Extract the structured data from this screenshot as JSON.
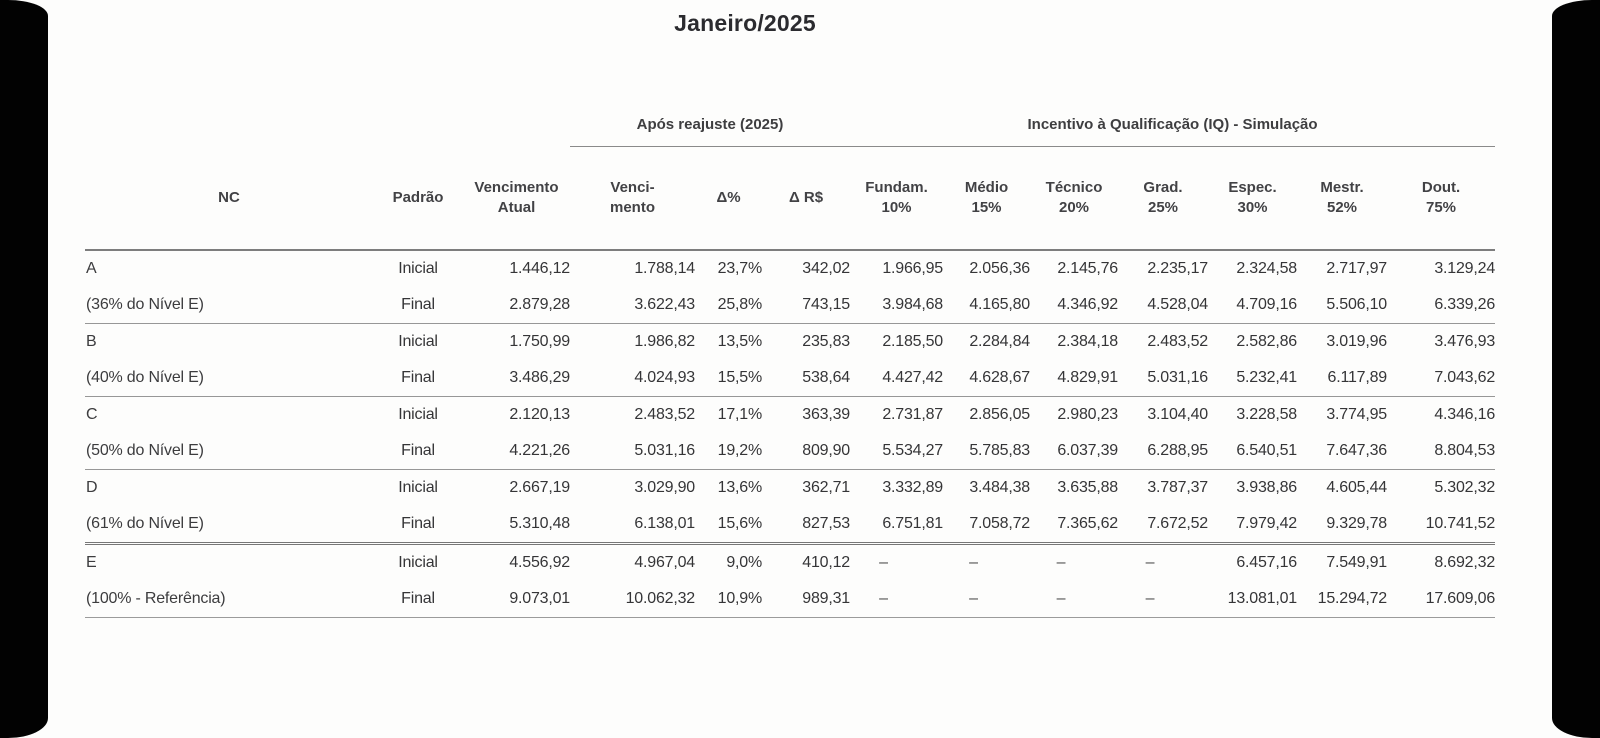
{
  "page": {
    "title": "Janeiro/2025",
    "background_color": "#000000",
    "paper_color": "#fdfdfc",
    "text_color": "#3a3a3a",
    "line_color": "#8a8a8a"
  },
  "table": {
    "group_headers": {
      "reajuste": "Após reajuste (2025)",
      "iq": "Incentivo à Qualificação (IQ) - Simulação"
    },
    "columns": [
      {
        "line1": "NC",
        "line2": ""
      },
      {
        "line1": "Padrão",
        "line2": ""
      },
      {
        "line1": "Vencimento",
        "line2": "Atual"
      },
      {
        "line1": "Venci-",
        "line2": "mento"
      },
      {
        "line1": "Δ%",
        "line2": ""
      },
      {
        "line1": "Δ R$",
        "line2": ""
      },
      {
        "line1": "Fundam.",
        "line2": "10%"
      },
      {
        "line1": "Médio",
        "line2": "15%"
      },
      {
        "line1": "Técnico",
        "line2": "20%"
      },
      {
        "line1": "Grad.",
        "line2": "25%"
      },
      {
        "line1": "Espec.",
        "line2": "30%"
      },
      {
        "line1": "Mestr.",
        "line2": "52%"
      },
      {
        "line1": "Dout.",
        "line2": "75%"
      }
    ],
    "rows": [
      {
        "nc": "A",
        "padrao": "Inicial",
        "sep": "none",
        "values": [
          "1.446,12",
          "1.788,14",
          "23,7%",
          "342,02",
          "1.966,95",
          "2.056,36",
          "2.145,76",
          "2.235,17",
          "2.324,58",
          "2.717,97",
          "3.129,24"
        ]
      },
      {
        "nc": "(36% do Nível E)",
        "padrao": "Final",
        "sep": "none",
        "values": [
          "2.879,28",
          "3.622,43",
          "25,8%",
          "743,15",
          "3.984,68",
          "4.165,80",
          "4.346,92",
          "4.528,04",
          "4.709,16",
          "5.506,10",
          "6.339,26"
        ]
      },
      {
        "nc": "B",
        "padrao": "Inicial",
        "sep": "line",
        "values": [
          "1.750,99",
          "1.986,82",
          "13,5%",
          "235,83",
          "2.185,50",
          "2.284,84",
          "2.384,18",
          "2.483,52",
          "2.582,86",
          "3.019,96",
          "3.476,93"
        ]
      },
      {
        "nc": "(40% do Nível E)",
        "padrao": "Final",
        "sep": "none",
        "values": [
          "3.486,29",
          "4.024,93",
          "15,5%",
          "538,64",
          "4.427,42",
          "4.628,67",
          "4.829,91",
          "5.031,16",
          "5.232,41",
          "6.117,89",
          "7.043,62"
        ]
      },
      {
        "nc": "C",
        "padrao": "Inicial",
        "sep": "line",
        "values": [
          "2.120,13",
          "2.483,52",
          "17,1%",
          "363,39",
          "2.731,87",
          "2.856,05",
          "2.980,23",
          "3.104,40",
          "3.228,58",
          "3.774,95",
          "4.346,16"
        ]
      },
      {
        "nc": "(50% do Nível E)",
        "padrao": "Final",
        "sep": "none",
        "values": [
          "4.221,26",
          "5.031,16",
          "19,2%",
          "809,90",
          "5.534,27",
          "5.785,83",
          "6.037,39",
          "6.288,95",
          "6.540,51",
          "7.647,36",
          "8.804,53"
        ]
      },
      {
        "nc": "D",
        "padrao": "Inicial",
        "sep": "line",
        "values": [
          "2.667,19",
          "3.029,90",
          "13,6%",
          "362,71",
          "3.332,89",
          "3.484,38",
          "3.635,88",
          "3.787,37",
          "3.938,86",
          "4.605,44",
          "5.302,32"
        ]
      },
      {
        "nc": "(61% do Nível E)",
        "padrao": "Final",
        "sep": "none",
        "values": [
          "5.310,48",
          "6.138,01",
          "15,6%",
          "827,53",
          "6.751,81",
          "7.058,72",
          "7.365,62",
          "7.672,52",
          "7.979,42",
          "9.329,78",
          "10.741,52"
        ]
      },
      {
        "nc": "E",
        "padrao": "Inicial",
        "sep": "double",
        "values": [
          "4.556,92",
          "4.967,04",
          "9,0%",
          "410,12",
          "–",
          "–",
          "–",
          "–",
          "6.457,16",
          "7.549,91",
          "8.692,32"
        ]
      },
      {
        "nc": "(100% - Referência)",
        "padrao": "Final",
        "sep": "none",
        "values": [
          "9.073,01",
          "10.062,32",
          "10,9%",
          "989,31",
          "–",
          "–",
          "–",
          "–",
          "13.081,01",
          "15.294,72",
          "17.609,06"
        ]
      }
    ]
  }
}
